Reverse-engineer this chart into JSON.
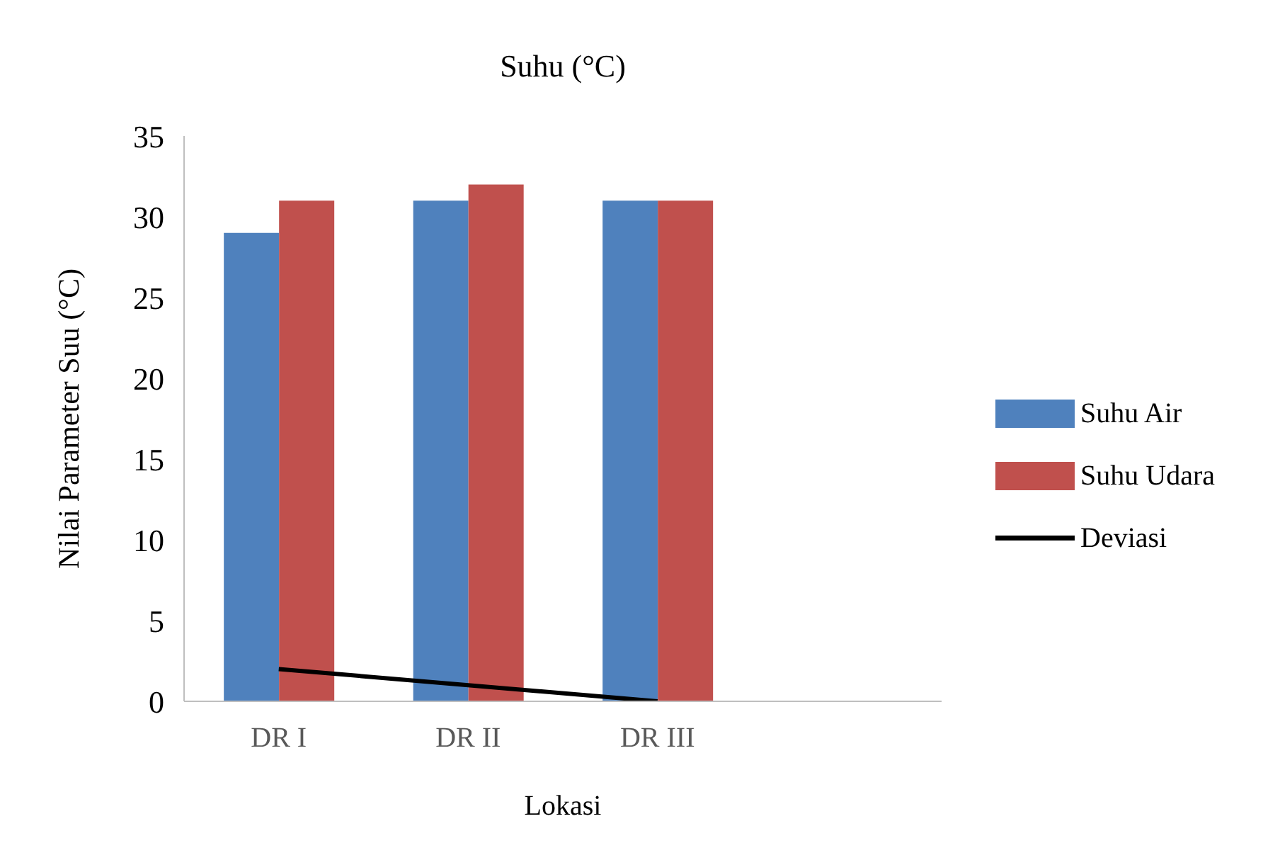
{
  "chart_data": {
    "type": "bar",
    "title": "Suhu (°C)",
    "xlabel": "Lokasi",
    "ylabel": "Nilai Parameter Suu (°C)",
    "categories": [
      "DR I",
      "DR II",
      "DR III",
      null
    ],
    "series": [
      {
        "name": "Suhu Air",
        "color": "#4f81bd",
        "values": [
          29,
          31,
          31,
          null
        ]
      },
      {
        "name": "Suhu Udara",
        "color": "#c0504d",
        "values": [
          31,
          32,
          31,
          null
        ]
      },
      {
        "name": "Deviasi",
        "type": "line",
        "color": "#000000",
        "values": [
          2,
          1,
          0,
          null
        ]
      }
    ],
    "ylim": [
      0,
      35
    ],
    "yticks": [
      0,
      5,
      10,
      15,
      20,
      25,
      30,
      35
    ],
    "grid": false,
    "legend": "right",
    "marker": "none",
    "line_style": "solid"
  }
}
